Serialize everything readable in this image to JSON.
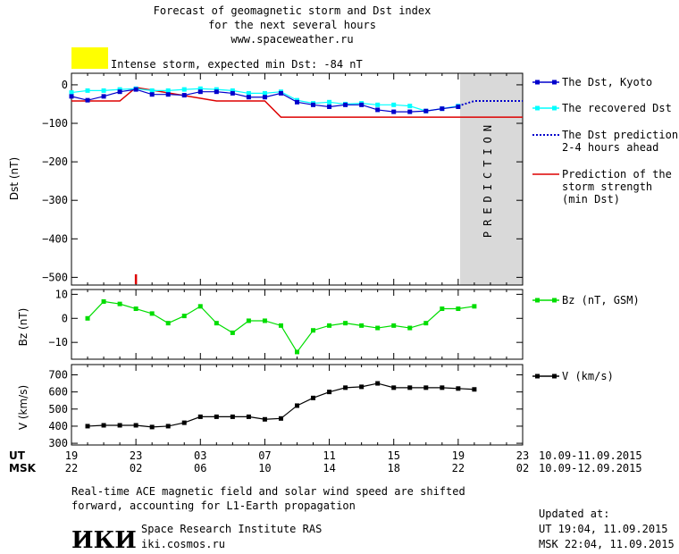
{
  "header": {
    "title_line1": "Forecast of geomagnetic storm and Dst index",
    "title_line2": "for the next several hours",
    "title_line3": "www.spaceweather.ru",
    "storm_label": "Intense storm, expected min Dst: -84 nT",
    "storm_color": "#ffff00"
  },
  "prediction_label": "PREDICTION",
  "time_axis": {
    "ut_label": "UT",
    "msk_label": "MSK",
    "ut_ticks": [
      "19",
      "23",
      "03",
      "07",
      "11",
      "15",
      "19",
      "23"
    ],
    "msk_ticks": [
      "22",
      "02",
      "06",
      "10",
      "14",
      "18",
      "22",
      "02"
    ],
    "ut_range": "10.09-11.09.2015",
    "msk_range": "10.09-12.09.2015"
  },
  "footer": {
    "note_line1": "Real-time ACE magnetic field and solar wind speed are shifted",
    "note_line2": "forward, accounting for L1-Earth propagation",
    "logo_text": "ИКИ",
    "institute": "Space Research Institute RAS",
    "site": "iki.cosmos.ru",
    "updated_label": "Updated at:",
    "updated_ut": "UT   19:04, 11.09.2015",
    "updated_msk": "MSK 22:04, 11.09.2015"
  },
  "colors": {
    "dst_kyoto": "#0000cc",
    "dst_recovered": "#00ffff",
    "dst_prediction": "#0000cc",
    "min_dst": "#dd0000",
    "bz": "#00dd00",
    "speed": "#000000",
    "prediction_band": "#d9d9d9"
  },
  "chart_data": [
    {
      "type": "line",
      "ylabel": "Dst (nT)",
      "yticks": [
        0,
        -100,
        -200,
        -300,
        -400,
        -500
      ],
      "ylim": [
        -520,
        30
      ],
      "x_hours_ut_from_19h_10sep": true,
      "series": [
        {
          "name": "The Dst, Kyoto",
          "x": [
            0,
            1,
            2,
            3,
            4,
            5,
            6,
            7,
            8,
            9,
            10,
            11,
            12,
            13,
            14,
            15,
            16,
            17,
            18,
            19,
            20,
            21,
            22,
            23,
            24
          ],
          "values": [
            -30,
            -40,
            -30,
            -18,
            -12,
            -25,
            -25,
            -27,
            -18,
            -18,
            -22,
            -32,
            -32,
            -22,
            -45,
            -52,
            -57,
            -52,
            -52,
            -65,
            -70,
            -70,
            -68,
            -62,
            -57
          ]
        },
        {
          "name": "The recovered Dst",
          "x": [
            0,
            1,
            2,
            3,
            4,
            5,
            6,
            7,
            8,
            9,
            10,
            11,
            12,
            13,
            14,
            15,
            16,
            17,
            18,
            19,
            20,
            21,
            22,
            23,
            24
          ],
          "values": [
            -20,
            -15,
            -15,
            -12,
            -10,
            -15,
            -15,
            -12,
            -10,
            -12,
            -15,
            -22,
            -22,
            -18,
            -40,
            -48,
            -45,
            -50,
            -48,
            -52,
            -52,
            -55,
            -68,
            -62,
            -55
          ]
        },
        {
          "name": "The Dst prediction\n2-4 hours ahead",
          "x": [
            24,
            25,
            26,
            27,
            28
          ],
          "values": [
            -55,
            -42,
            -42,
            -42,
            -42
          ]
        },
        {
          "name": "Prediction of the\nstorm strength\n(min Dst)",
          "x": [
            0,
            1,
            3,
            4,
            9,
            12,
            13,
            14,
            28
          ],
          "values": [
            -42,
            -42,
            -42,
            -7,
            -42,
            -42,
            -84,
            -84,
            -84
          ]
        }
      ],
      "marker_x": 4
    },
    {
      "type": "line",
      "ylabel": "Bz (nT)",
      "yticks": [
        10,
        0,
        -10
      ],
      "ylim": [
        -17,
        12
      ],
      "series": [
        {
          "name": "Bz (nT, GSM)",
          "x": [
            1,
            2,
            3,
            4,
            5,
            6,
            7,
            8,
            9,
            10,
            11,
            12,
            13,
            14,
            15,
            16,
            17,
            18,
            19,
            20,
            21,
            22,
            23,
            24,
            25,
            26
          ],
          "values": [
            0,
            7,
            6,
            4,
            2,
            -2,
            1,
            5,
            -2,
            -6,
            -1,
            -1,
            -3,
            -14,
            -5,
            -3,
            -2,
            -3,
            -4,
            -3,
            -4,
            -2,
            4,
            4,
            5,
            null
          ]
        }
      ]
    },
    {
      "type": "line",
      "ylabel": "V (km/s)",
      "yticks": [
        700,
        600,
        500,
        400,
        300
      ],
      "ylim": [
        290,
        760
      ],
      "series": [
        {
          "name": "V (km/s)",
          "x": [
            1,
            2,
            3,
            4,
            5,
            6,
            7,
            8,
            9,
            10,
            11,
            12,
            13,
            14,
            15,
            16,
            17,
            18,
            19,
            20,
            21,
            22,
            23,
            24,
            25
          ],
          "values": [
            400,
            405,
            405,
            405,
            395,
            400,
            420,
            455,
            455,
            455,
            455,
            440,
            445,
            520,
            565,
            600,
            625,
            630,
            650,
            625,
            625,
            625,
            625,
            620,
            615
          ]
        }
      ]
    }
  ]
}
